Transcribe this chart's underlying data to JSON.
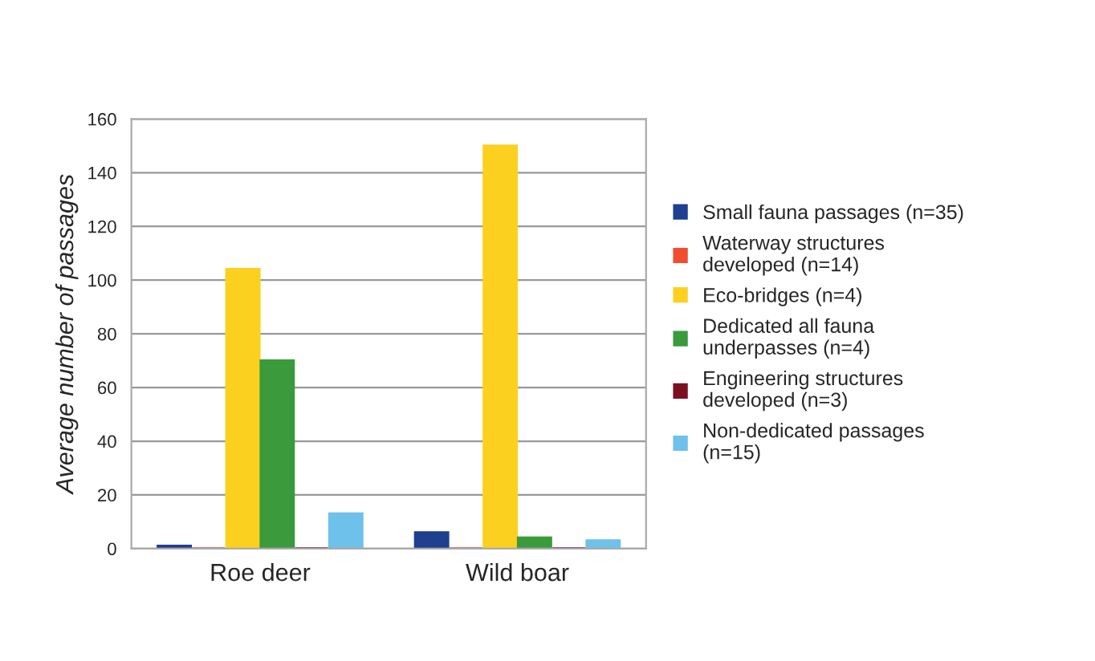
{
  "chart_data": {
    "type": "bar",
    "ylabel": "Average number of passages",
    "categories": [
      "Roe deer",
      "Wild boar"
    ],
    "series": [
      {
        "name": "Small fauna passages (n=35)",
        "color": "#1f3f8f",
        "values": [
          1,
          6
        ]
      },
      {
        "name": "Waterway structures developed (n=14)",
        "color": "#f04e30",
        "values": [
          0,
          0
        ]
      },
      {
        "name": "Eco-bridges (n=4)",
        "color": "#fcd01e",
        "values": [
          104,
          150
        ]
      },
      {
        "name": "Dedicated all fauna underpasses (n=4)",
        "color": "#3a9a3c",
        "values": [
          70,
          4
        ]
      },
      {
        "name": "Engineering structures developed (n=3)",
        "color": "#7a1020",
        "values": [
          0,
          0
        ]
      },
      {
        "name": "Non-dedicated passages (n=15)",
        "color": "#6ec1ea",
        "values": [
          13,
          3
        ]
      }
    ],
    "ylim": [
      0,
      160
    ],
    "yticks": [
      0,
      20,
      40,
      60,
      80,
      100,
      120,
      140,
      160
    ],
    "grid": "y",
    "legend": "right"
  }
}
